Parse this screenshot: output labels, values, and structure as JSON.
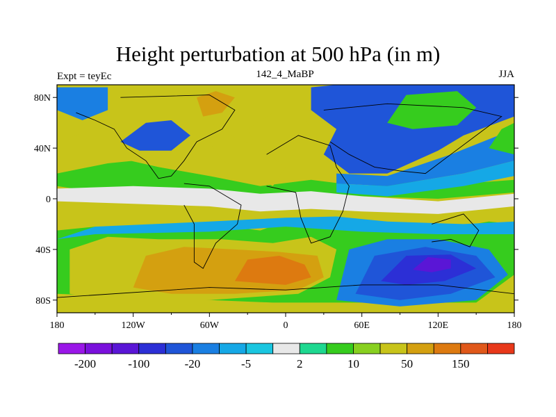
{
  "title": "Height perturbation at 500 hPa (in m)",
  "left_label": "Expt = teyEc",
  "center_label": "142_4_MaBP",
  "right_label": "JJA",
  "x_ticks": [
    {
      "value": -180,
      "label": "180"
    },
    {
      "value": -120,
      "label": "120W"
    },
    {
      "value": -60,
      "label": "60W"
    },
    {
      "value": 0,
      "label": "0"
    },
    {
      "value": 60,
      "label": "60E"
    },
    {
      "value": 120,
      "label": "120E"
    },
    {
      "value": 180,
      "label": "180"
    }
  ],
  "y_ticks": [
    {
      "value": 80,
      "label": "80N"
    },
    {
      "value": 40,
      "label": "40N"
    },
    {
      "value": 0,
      "label": "0"
    },
    {
      "value": -40,
      "label": "40S"
    },
    {
      "value": -80,
      "label": "80S"
    }
  ],
  "lon_range": [
    -180,
    180
  ],
  "lat_range": [
    -90,
    90
  ],
  "colorbar": {
    "colors": [
      "#9a17e8",
      "#7a10dc",
      "#5a16d6",
      "#2c2fd6",
      "#1f55d8",
      "#1a7fe2",
      "#15a8e6",
      "#1ac6e0",
      "#e8e8e8",
      "#1ed890",
      "#36cc1e",
      "#88d020",
      "#c8c41a",
      "#d4a010",
      "#dd7a10",
      "#e0581a",
      "#e8381a"
    ],
    "labels": [
      {
        "after_box": 1,
        "text": "-200"
      },
      {
        "after_box": 3,
        "text": "-100"
      },
      {
        "after_box": 5,
        "text": "-20"
      },
      {
        "after_box": 7,
        "text": "-5"
      },
      {
        "after_box": 9,
        "text": "2"
      },
      {
        "after_box": 11,
        "text": "10"
      },
      {
        "after_box": 13,
        "text": "50"
      },
      {
        "after_box": 15,
        "text": "150"
      }
    ]
  },
  "field_regions": [
    {
      "name": "sh-midlat-band",
      "color": "#36cc1e",
      "lon": [
        [
          -180,
          -58
        ],
        [
          -180,
          -25
        ],
        [
          -150,
          -22
        ],
        [
          -110,
          -25
        ],
        [
          -60,
          -20
        ],
        [
          -20,
          -25
        ],
        [
          0,
          -18
        ],
        [
          40,
          -15
        ],
        [
          80,
          -22
        ],
        [
          120,
          -25
        ],
        [
          160,
          -18
        ],
        [
          180,
          -20
        ],
        [
          180,
          -60
        ],
        [
          150,
          -82
        ],
        [
          -10,
          -82
        ],
        [
          -180,
          -75
        ]
      ]
    },
    {
      "name": "sh-yellow",
      "color": "#c8c41a",
      "lon": [
        [
          -170,
          -75
        ],
        [
          -170,
          -40
        ],
        [
          -140,
          -30
        ],
        [
          -100,
          -32
        ],
        [
          -50,
          -32
        ],
        [
          -10,
          -35
        ],
        [
          20,
          -30
        ],
        [
          40,
          -40
        ],
        [
          35,
          -62
        ],
        [
          10,
          -75
        ],
        [
          -60,
          -80
        ],
        [
          -140,
          -80
        ]
      ]
    },
    {
      "name": "sh-orange",
      "color": "#d4a010",
      "lon": [
        [
          -120,
          -70
        ],
        [
          -110,
          -45
        ],
        [
          -80,
          -38
        ],
        [
          -40,
          -40
        ],
        [
          -5,
          -42
        ],
        [
          25,
          -45
        ],
        [
          30,
          -62
        ],
        [
          10,
          -72
        ],
        [
          -40,
          -75
        ],
        [
          -90,
          -75
        ]
      ]
    },
    {
      "name": "sh-darkorange",
      "color": "#dd7a10",
      "lon": [
        [
          -40,
          -65
        ],
        [
          -30,
          -48
        ],
        [
          -5,
          -45
        ],
        [
          15,
          -52
        ],
        [
          20,
          -62
        ],
        [
          0,
          -68
        ]
      ]
    },
    {
      "name": "sh-blue",
      "color": "#1a7fe2",
      "lon": [
        [
          40,
          -80
        ],
        [
          50,
          -40
        ],
        [
          80,
          -32
        ],
        [
          120,
          -32
        ],
        [
          160,
          -40
        ],
        [
          175,
          -60
        ],
        [
          150,
          -80
        ],
        [
          90,
          -85
        ]
      ]
    },
    {
      "name": "sh-darkblue",
      "color": "#1f55d8",
      "lon": [
        [
          55,
          -75
        ],
        [
          70,
          -45
        ],
        [
          110,
          -38
        ],
        [
          150,
          -45
        ],
        [
          165,
          -62
        ],
        [
          130,
          -75
        ],
        [
          90,
          -80
        ]
      ]
    },
    {
      "name": "sh-deepblue",
      "color": "#2c2fd6",
      "lon": [
        [
          75,
          -65
        ],
        [
          95,
          -45
        ],
        [
          130,
          -44
        ],
        [
          150,
          -55
        ],
        [
          125,
          -65
        ],
        [
          95,
          -68
        ]
      ]
    },
    {
      "name": "sh-purple",
      "color": "#5a16d6",
      "lon": [
        [
          100,
          -56
        ],
        [
          112,
          -46
        ],
        [
          130,
          -48
        ],
        [
          130,
          -55
        ],
        [
          115,
          -58
        ]
      ]
    },
    {
      "name": "sh-cyan-edge",
      "color": "#15a8e6",
      "lon": [
        [
          -180,
          -32
        ],
        [
          -150,
          -22
        ],
        [
          -60,
          -18
        ],
        [
          0,
          -15
        ],
        [
          40,
          -14
        ],
        [
          80,
          -18
        ],
        [
          140,
          -20
        ],
        [
          180,
          -18
        ],
        [
          180,
          -28
        ],
        [
          120,
          -28
        ],
        [
          60,
          -26
        ],
        [
          0,
          -22
        ],
        [
          -60,
          -26
        ],
        [
          -150,
          -28
        ]
      ]
    },
    {
      "name": "nh-green-band",
      "color": "#36cc1e",
      "lon": [
        [
          -180,
          10
        ],
        [
          -180,
          30
        ],
        [
          -140,
          34
        ],
        [
          -100,
          25
        ],
        [
          -60,
          18
        ],
        [
          -20,
          10
        ],
        [
          20,
          15
        ],
        [
          60,
          10
        ],
        [
          100,
          14
        ],
        [
          140,
          12
        ],
        [
          180,
          15
        ],
        [
          180,
          5
        ],
        [
          120,
          0
        ],
        [
          60,
          2
        ],
        [
          0,
          -2
        ],
        [
          -60,
          2
        ],
        [
          -140,
          4
        ]
      ]
    },
    {
      "name": "nh-yellow-left",
      "color": "#c8c41a",
      "lon": [
        [
          -180,
          20
        ],
        [
          -180,
          45
        ],
        [
          -150,
          55
        ],
        [
          -110,
          55
        ],
        [
          -90,
          50
        ],
        [
          -80,
          40
        ],
        [
          -100,
          32
        ],
        [
          -140,
          28
        ]
      ]
    },
    {
      "name": "nh-yellow-center",
      "color": "#c8c41a",
      "lon": [
        [
          -85,
          88
        ],
        [
          -70,
          90
        ],
        [
          -30,
          90
        ],
        [
          -40,
          60
        ],
        [
          -60,
          45
        ],
        [
          -50,
          30
        ],
        [
          -30,
          20
        ],
        [
          -10,
          10
        ],
        [
          0,
          25
        ],
        [
          -20,
          40
        ],
        [
          -55,
          55
        ],
        [
          -65,
          75
        ]
      ]
    },
    {
      "name": "nh-orange-center",
      "color": "#d4a010",
      "lon": [
        [
          -70,
          80
        ],
        [
          -55,
          85
        ],
        [
          -40,
          80
        ],
        [
          -50,
          68
        ],
        [
          -65,
          65
        ]
      ]
    },
    {
      "name": "nh-blue-left",
      "color": "#1a7fe2",
      "lon": [
        [
          -180,
          70
        ],
        [
          -180,
          88
        ],
        [
          -140,
          88
        ],
        [
          -140,
          70
        ],
        [
          -160,
          62
        ]
      ]
    },
    {
      "name": "nh-blue-mid",
      "color": "#1f55d8",
      "lon": [
        [
          -130,
          45
        ],
        [
          -110,
          60
        ],
        [
          -90,
          62
        ],
        [
          -75,
          50
        ],
        [
          -90,
          38
        ],
        [
          -115,
          38
        ]
      ]
    },
    {
      "name": "nh-blue-east",
      "color": "#1f55d8",
      "lon": [
        [
          20,
          88
        ],
        [
          40,
          90
        ],
        [
          180,
          90
        ],
        [
          180,
          65
        ],
        [
          140,
          50
        ],
        [
          120,
          38
        ],
        [
          80,
          20
        ],
        [
          50,
          20
        ],
        [
          30,
          35
        ],
        [
          40,
          55
        ],
        [
          20,
          70
        ]
      ]
    },
    {
      "name": "nh-blue-east-light",
      "color": "#1a7fe2",
      "lon": [
        [
          40,
          20
        ],
        [
          80,
          18
        ],
        [
          130,
          35
        ],
        [
          180,
          55
        ],
        [
          180,
          30
        ],
        [
          140,
          20
        ],
        [
          80,
          10
        ],
        [
          40,
          12
        ]
      ]
    },
    {
      "name": "nh-cyan-east",
      "color": "#15a8e6",
      "lon": [
        [
          40,
          12
        ],
        [
          80,
          10
        ],
        [
          140,
          20
        ],
        [
          180,
          30
        ],
        [
          180,
          18
        ],
        [
          140,
          10
        ],
        [
          80,
          2
        ],
        [
          40,
          5
        ]
      ]
    },
    {
      "name": "nh-yellow-east",
      "color": "#c8c41a",
      "lon": [
        [
          90,
          68
        ],
        [
          100,
          78
        ],
        [
          125,
          80
        ],
        [
          140,
          75
        ],
        [
          130,
          65
        ],
        [
          105,
          60
        ]
      ]
    },
    {
      "name": "nh-green-east",
      "color": "#36cc1e",
      "lon": [
        [
          80,
          60
        ],
        [
          95,
          82
        ],
        [
          135,
          85
        ],
        [
          150,
          72
        ],
        [
          135,
          58
        ],
        [
          100,
          55
        ]
      ]
    },
    {
      "name": "nh-yellow-mid",
      "color": "#c8c41a",
      "lon": [
        [
          -30,
          55
        ],
        [
          -10,
          68
        ],
        [
          15,
          66
        ],
        [
          20,
          52
        ],
        [
          0,
          45
        ],
        [
          -25,
          45
        ]
      ]
    },
    {
      "name": "nh-green-right",
      "color": "#36cc1e",
      "lon": [
        [
          160,
          40
        ],
        [
          170,
          55
        ],
        [
          180,
          60
        ],
        [
          180,
          35
        ]
      ]
    },
    {
      "name": "eq-white",
      "color": "#e8e8e8",
      "lon": [
        [
          -180,
          -2
        ],
        [
          -180,
          8
        ],
        [
          -120,
          10
        ],
        [
          -60,
          8
        ],
        [
          -20,
          4
        ],
        [
          20,
          6
        ],
        [
          60,
          2
        ],
        [
          120,
          -2
        ],
        [
          180,
          4
        ],
        [
          180,
          -6
        ],
        [
          120,
          -12
        ],
        [
          60,
          -10
        ],
        [
          20,
          -8
        ],
        [
          -20,
          -10
        ],
        [
          -60,
          -6
        ],
        [
          -120,
          -4
        ]
      ]
    }
  ],
  "continents": [
    {
      "name": "north-america-outline",
      "points": [
        [
          -130,
          80
        ],
        [
          -60,
          82
        ],
        [
          -40,
          70
        ],
        [
          -50,
          55
        ],
        [
          -70,
          45
        ],
        [
          -80,
          30
        ],
        [
          -90,
          18
        ],
        [
          -100,
          16
        ],
        [
          -110,
          30
        ],
        [
          -125,
          40
        ],
        [
          -135,
          55
        ],
        [
          -150,
          62
        ],
        [
          -165,
          68
        ]
      ]
    },
    {
      "name": "south-america-outline",
      "points": [
        [
          -80,
          12
        ],
        [
          -60,
          10
        ],
        [
          -35,
          -5
        ],
        [
          -38,
          -20
        ],
        [
          -55,
          -35
        ],
        [
          -65,
          -55
        ],
        [
          -72,
          -50
        ],
        [
          -72,
          -20
        ],
        [
          -80,
          -5
        ]
      ]
    },
    {
      "name": "africa-europe-outline",
      "points": [
        [
          -15,
          35
        ],
        [
          10,
          50
        ],
        [
          35,
          42
        ],
        [
          40,
          25
        ],
        [
          50,
          10
        ],
        [
          45,
          -10
        ],
        [
          35,
          -30
        ],
        [
          20,
          -35
        ],
        [
          12,
          -15
        ],
        [
          8,
          5
        ],
        [
          -15,
          10
        ]
      ]
    },
    {
      "name": "asia-outline",
      "points": [
        [
          30,
          70
        ],
        [
          80,
          75
        ],
        [
          140,
          72
        ],
        [
          170,
          65
        ],
        [
          150,
          50
        ],
        [
          130,
          35
        ],
        [
          110,
          20
        ],
        [
          90,
          22
        ],
        [
          70,
          25
        ],
        [
          50,
          35
        ],
        [
          35,
          45
        ]
      ]
    },
    {
      "name": "australia-outline",
      "points": [
        [
          115,
          -20
        ],
        [
          140,
          -12
        ],
        [
          152,
          -25
        ],
        [
          145,
          -38
        ],
        [
          130,
          -32
        ],
        [
          115,
          -34
        ]
      ]
    },
    {
      "name": "antarctica-outline",
      "points": [
        [
          -180,
          -78
        ],
        [
          -60,
          -70
        ],
        [
          0,
          -72
        ],
        [
          60,
          -68
        ],
        [
          120,
          -68
        ],
        [
          180,
          -75
        ]
      ]
    }
  ]
}
